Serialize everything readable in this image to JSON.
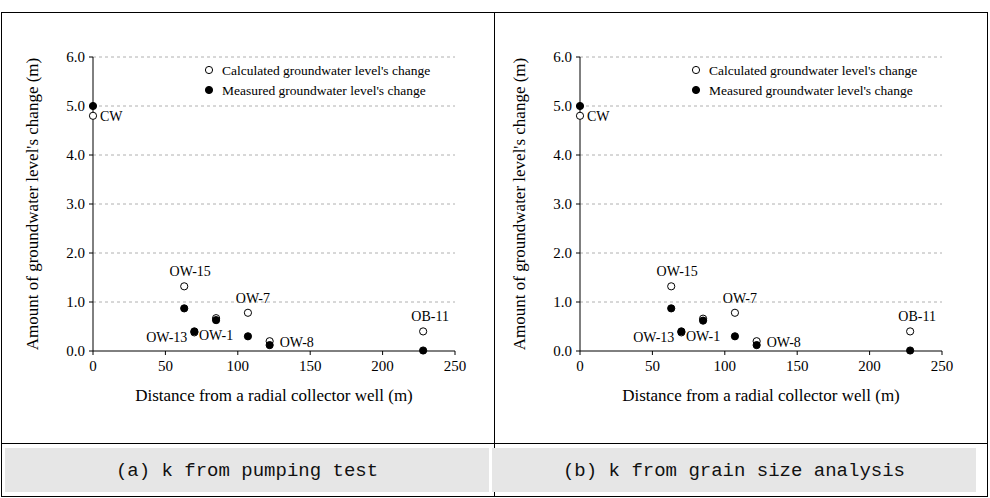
{
  "chart_data": [
    {
      "type": "scatter",
      "title": "(a) k from pumping test",
      "x_label": "Distance from a radial collector well (m)",
      "y_label": "Amount of groundwater level's change (m)",
      "x": [
        0,
        63,
        70,
        85,
        107,
        122,
        228
      ],
      "point_labels": [
        "CW",
        "OW-15",
        "OW-13",
        "OW-1",
        "OW-7",
        "OW-8",
        "OB-11"
      ],
      "series": [
        {
          "name": "Calculated groundwater level's change",
          "color": "#000000",
          "marker": "open",
          "values": [
            4.8,
            1.32,
            0.38,
            0.67,
            0.78,
            0.2,
            0.4
          ]
        },
        {
          "name": "Measured groundwater level's change",
          "color": "#000000",
          "marker": "filled",
          "values": [
            5.0,
            0.87,
            0.4,
            0.63,
            0.3,
            0.12,
            0.01
          ]
        }
      ],
      "xlim": [
        0,
        250
      ],
      "xticks": [
        0,
        50,
        100,
        150,
        200,
        250
      ],
      "ylim": [
        0,
        6
      ],
      "yticks": [
        {
          "value": 0,
          "label": "0.0"
        },
        {
          "value": 1,
          "label": "1.0"
        },
        {
          "value": 2,
          "label": "2.0"
        },
        {
          "value": 3,
          "label": "3.0"
        },
        {
          "value": 4,
          "label": "4.0"
        },
        {
          "value": 5,
          "label": "5.0"
        },
        {
          "value": 6,
          "label": "6.0"
        }
      ],
      "grid": true,
      "legend": "upper right"
    },
    {
      "type": "scatter",
      "title": "(b) k from grain size analysis",
      "x_label": "Distance from a radial collector well (m)",
      "y_label": "Amount of groundwater level's change (m)",
      "x": [
        0,
        63,
        70,
        85,
        107,
        122,
        228
      ],
      "point_labels": [
        "CW",
        "OW-15",
        "OW-13",
        "OW-1",
        "OW-7",
        "OW-8",
        "OB-11"
      ],
      "series": [
        {
          "name": "Calculated groundwater level's change",
          "color": "#000000",
          "marker": "open",
          "values": [
            4.8,
            1.32,
            0.38,
            0.66,
            0.78,
            0.2,
            0.4
          ]
        },
        {
          "name": "Measured groundwater level's change",
          "color": "#000000",
          "marker": "filled",
          "values": [
            5.0,
            0.87,
            0.4,
            0.62,
            0.3,
            0.12,
            0.01
          ]
        }
      ],
      "xlim": [
        0,
        250
      ],
      "xticks": [
        0,
        50,
        100,
        150,
        200,
        250
      ],
      "ylim": [
        0,
        6
      ],
      "yticks": [
        {
          "value": 0,
          "label": "0.0"
        },
        {
          "value": 1,
          "label": "1.0"
        },
        {
          "value": 2,
          "label": "2.0"
        },
        {
          "value": 3,
          "label": "3.0"
        },
        {
          "value": 4,
          "label": "4.0"
        },
        {
          "value": 5,
          "label": "5.0"
        },
        {
          "value": 6,
          "label": "6.0"
        }
      ],
      "grid": true,
      "legend": "upper right"
    }
  ]
}
